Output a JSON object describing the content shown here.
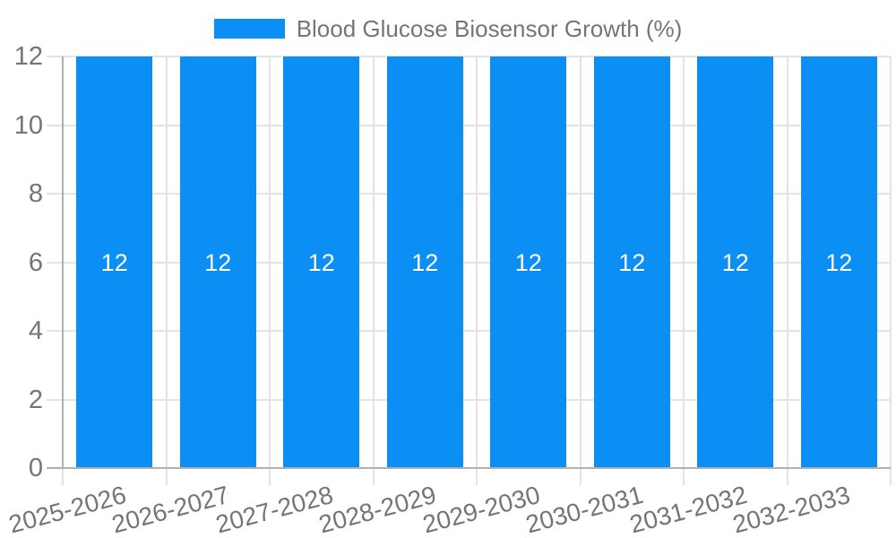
{
  "chart_data": {
    "type": "bar",
    "title": "Blood Glucose Biosensor Growth (%)",
    "categories": [
      "2025-2026",
      "2026-2027",
      "2027-2028",
      "2028-2029",
      "2029-2030",
      "2030-2031",
      "2031-2032",
      "2032-2033"
    ],
    "values": [
      12,
      12,
      12,
      12,
      12,
      12,
      12,
      12
    ],
    "value_labels": [
      "12",
      "12",
      "12",
      "12",
      "12",
      "12",
      "12",
      "12"
    ],
    "xlabel": "",
    "ylabel": "",
    "ylim": [
      0,
      12
    ],
    "yticks": [
      0,
      2,
      4,
      6,
      8,
      10,
      12
    ],
    "grid": true,
    "legend_position": "top",
    "x_label_rotation_deg": -15
  },
  "colors": {
    "bar": "#0b8ff5",
    "axis_text": "#757575",
    "legend_text": "#757575",
    "value_label": "#ffffff",
    "grid_line": "#e3e3e3",
    "axis_line": "#b0b0b0",
    "background": "#ffffff"
  }
}
